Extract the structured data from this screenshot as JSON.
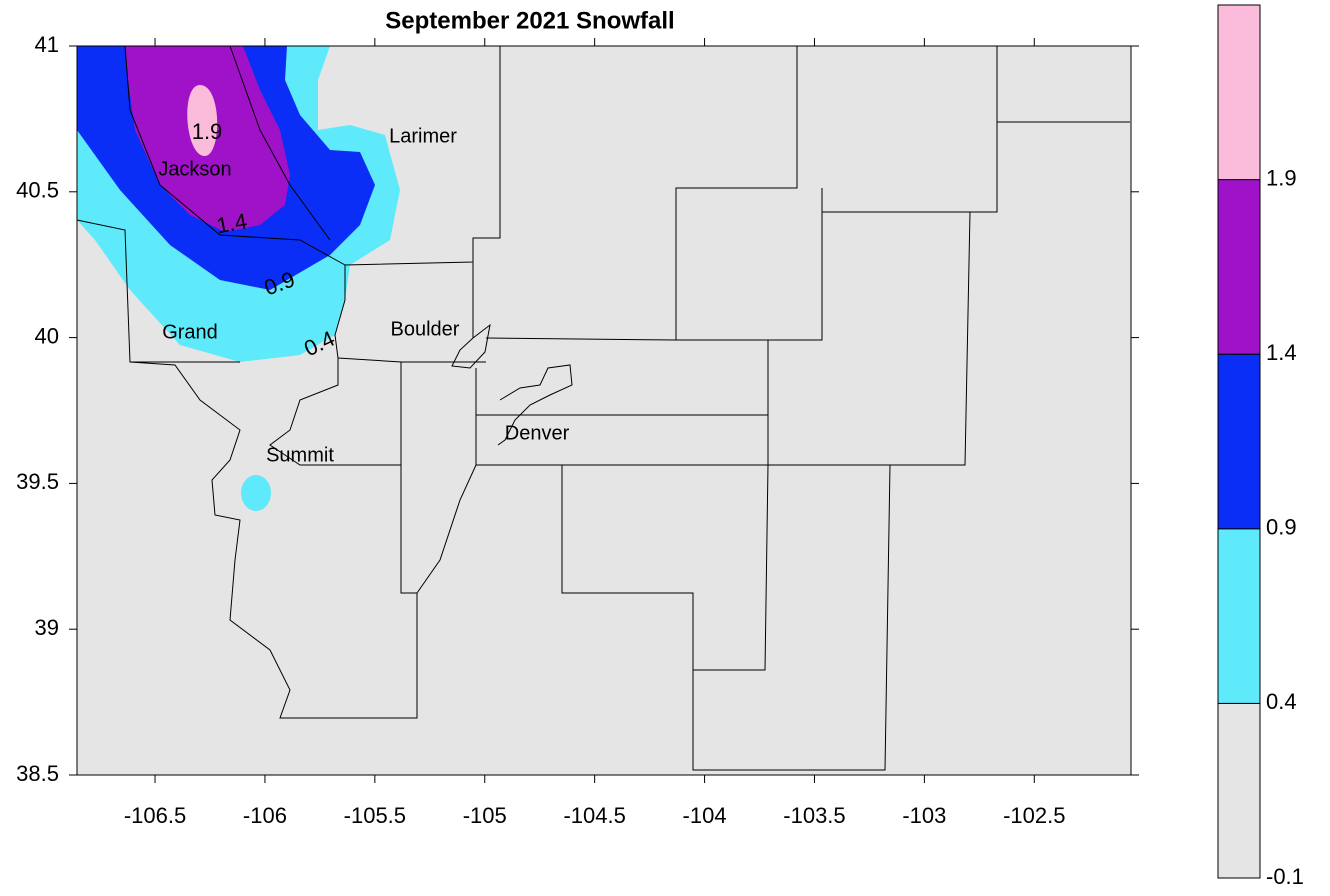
{
  "title": "September 2021 Snowfall",
  "axes": {
    "xlim": [
      -106.855,
      -102.06
    ],
    "ylim": [
      38.5,
      41
    ],
    "xticks": [
      -106.5,
      -106,
      -105.5,
      -105,
      -104.5,
      -104,
      -103.5,
      -103,
      -102.5
    ],
    "yticks": [
      38.5,
      39,
      39.5,
      40,
      40.5,
      41
    ]
  },
  "county_labels": [
    "Larimer",
    "Jackson",
    "Grand",
    "Boulder",
    "Summit",
    "Denver"
  ],
  "contour_labels": [
    1.9,
    1.4,
    0.9,
    0.4
  ],
  "colorbar": {
    "levels": [
      -0.1,
      0.4,
      0.9,
      1.4,
      1.9
    ],
    "lim": [
      -0.1,
      2.4
    ],
    "colors": [
      "#e5e5e5",
      "#5eeafb",
      "#0a2ef5",
      "#a012c8",
      "#fbbcdc"
    ]
  }
}
